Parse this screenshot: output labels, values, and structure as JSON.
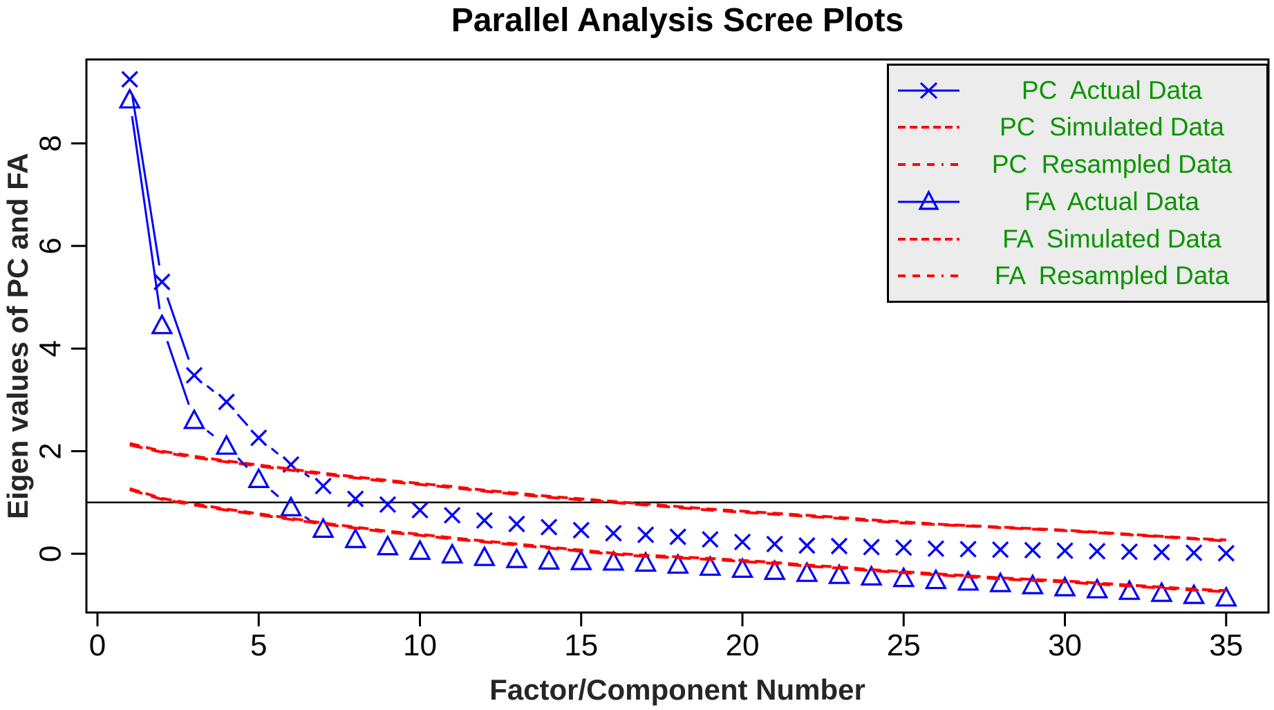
{
  "title": "Parallel Analysis Scree Plots",
  "x_axis": {
    "label": "Factor/Component Number",
    "ticks": [
      0,
      5,
      10,
      15,
      20,
      25,
      30,
      35
    ]
  },
  "y_axis": {
    "label": "Eigen values of PC and FA",
    "ticks": [
      0,
      2,
      4,
      6,
      8
    ]
  },
  "reference_line_y": 1,
  "colors": {
    "actual_line": "#0000ff",
    "simulated_line": "#ff0000",
    "legend_text": "#0a9400",
    "legend_bg": "#ececec",
    "axis": "#000000"
  },
  "legend": {
    "items": [
      {
        "label": "PC  Actual Data"
      },
      {
        "label": "PC  Simulated Data"
      },
      {
        "label": "PC  Resampled Data"
      },
      {
        "label": "FA  Actual Data"
      },
      {
        "label": "FA  Simulated Data"
      },
      {
        "label": "FA  Resampled Data"
      }
    ]
  },
  "chart_data": {
    "type": "line",
    "title": "Parallel Analysis Scree Plots",
    "xlabel": "Factor/Component Number",
    "ylabel": "Eigen values of PC and FA",
    "xlim": [
      -0.35,
      36.35
    ],
    "ylim": [
      -1.15,
      9.7
    ],
    "grid": false,
    "legend_position": "top-right",
    "reference_line_y": 1,
    "x": [
      1,
      2,
      3,
      4,
      5,
      6,
      7,
      8,
      9,
      10,
      11,
      12,
      13,
      14,
      15,
      16,
      17,
      18,
      19,
      20,
      21,
      22,
      23,
      24,
      25,
      26,
      27,
      28,
      29,
      30,
      31,
      32,
      33,
      34,
      35
    ],
    "series": [
      {
        "name": "PC Actual Data",
        "color": "#0000ff",
        "marker": "x",
        "line": "solid",
        "values": [
          9.25,
          5.3,
          3.48,
          2.96,
          2.26,
          1.74,
          1.32,
          1.07,
          0.96,
          0.85,
          0.75,
          0.65,
          0.58,
          0.52,
          0.46,
          0.4,
          0.37,
          0.33,
          0.28,
          0.23,
          0.19,
          0.16,
          0.15,
          0.13,
          0.12,
          0.1,
          0.09,
          0.08,
          0.07,
          0.06,
          0.05,
          0.04,
          0.03,
          0.02,
          0.01
        ]
      },
      {
        "name": "PC Simulated Data",
        "color": "#ff0000",
        "marker": null,
        "line": "dashed",
        "values": [
          2.15,
          2.0,
          1.9,
          1.81,
          1.73,
          1.65,
          1.57,
          1.5,
          1.43,
          1.37,
          1.31,
          1.24,
          1.18,
          1.12,
          1.07,
          1.02,
          0.97,
          0.92,
          0.87,
          0.83,
          0.79,
          0.75,
          0.71,
          0.66,
          0.62,
          0.58,
          0.55,
          0.52,
          0.49,
          0.46,
          0.42,
          0.38,
          0.34,
          0.3,
          0.27
        ]
      },
      {
        "name": "PC Resampled Data",
        "color": "#ff0000",
        "marker": null,
        "line": "dotdash",
        "values": [
          2.12,
          1.98,
          1.88,
          1.79,
          1.71,
          1.63,
          1.55,
          1.48,
          1.41,
          1.35,
          1.29,
          1.22,
          1.16,
          1.1,
          1.05,
          1.0,
          0.95,
          0.9,
          0.85,
          0.81,
          0.77,
          0.73,
          0.69,
          0.64,
          0.6,
          0.57,
          0.54,
          0.51,
          0.48,
          0.45,
          0.41,
          0.37,
          0.33,
          0.29,
          0.25
        ]
      },
      {
        "name": "FA Actual Data",
        "color": "#0000ff",
        "marker": "triangle",
        "line": "solid",
        "values": [
          8.85,
          4.45,
          2.6,
          2.1,
          1.45,
          0.9,
          0.48,
          0.28,
          0.14,
          0.05,
          -0.02,
          -0.07,
          -0.11,
          -0.14,
          -0.15,
          -0.16,
          -0.18,
          -0.22,
          -0.26,
          -0.3,
          -0.34,
          -0.38,
          -0.42,
          -0.45,
          -0.48,
          -0.52,
          -0.55,
          -0.58,
          -0.62,
          -0.66,
          -0.7,
          -0.73,
          -0.77,
          -0.81,
          -0.86
        ]
      },
      {
        "name": "FA Simulated Data",
        "color": "#ff0000",
        "marker": null,
        "line": "dashed",
        "values": [
          1.27,
          1.08,
          0.97,
          0.87,
          0.78,
          0.69,
          0.6,
          0.52,
          0.44,
          0.38,
          0.31,
          0.25,
          0.19,
          0.13,
          0.07,
          0.01,
          -0.03,
          -0.06,
          -0.09,
          -0.13,
          -0.17,
          -0.22,
          -0.26,
          -0.31,
          -0.35,
          -0.39,
          -0.43,
          -0.47,
          -0.5,
          -0.53,
          -0.57,
          -0.61,
          -0.65,
          -0.69,
          -0.72
        ]
      },
      {
        "name": "FA Resampled Data",
        "color": "#ff0000",
        "marker": null,
        "line": "dotdash",
        "values": [
          1.25,
          1.06,
          0.95,
          0.85,
          0.76,
          0.67,
          0.58,
          0.5,
          0.42,
          0.36,
          0.29,
          0.23,
          0.17,
          0.11,
          0.05,
          -0.01,
          -0.05,
          -0.08,
          -0.11,
          -0.15,
          -0.19,
          -0.24,
          -0.28,
          -0.33,
          -0.37,
          -0.41,
          -0.45,
          -0.49,
          -0.52,
          -0.55,
          -0.59,
          -0.63,
          -0.67,
          -0.71,
          -0.74
        ]
      }
    ]
  }
}
